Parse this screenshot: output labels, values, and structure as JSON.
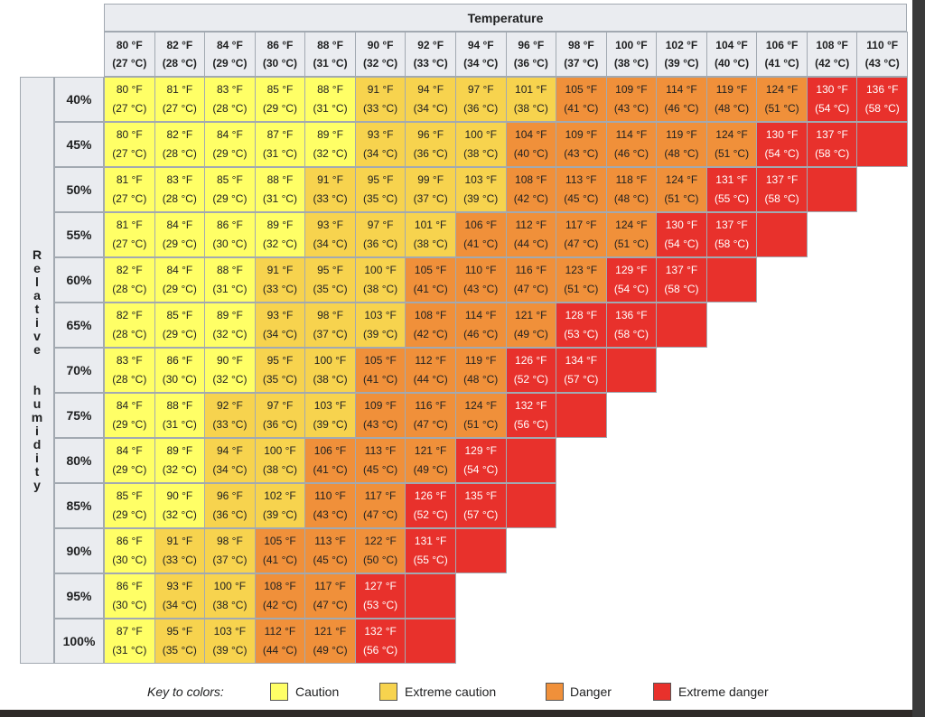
{
  "chart_data": {
    "type": "heatmap",
    "title": "Temperature",
    "xlabel": "Temperature",
    "ylabel": "Relative humidity",
    "columns": [
      {
        "f": "80 °F",
        "c": "(27 °C)"
      },
      {
        "f": "82 °F",
        "c": "(28 °C)"
      },
      {
        "f": "84 °F",
        "c": "(29 °C)"
      },
      {
        "f": "86 °F",
        "c": "(30 °C)"
      },
      {
        "f": "88 °F",
        "c": "(31 °C)"
      },
      {
        "f": "90 °F",
        "c": "(32 °C)"
      },
      {
        "f": "92 °F",
        "c": "(33 °C)"
      },
      {
        "f": "94 °F",
        "c": "(34 °C)"
      },
      {
        "f": "96 °F",
        "c": "(36 °C)"
      },
      {
        "f": "98 °F",
        "c": "(37 °C)"
      },
      {
        "f": "100 °F",
        "c": "(38 °C)"
      },
      {
        "f": "102 °F",
        "c": "(39 °C)"
      },
      {
        "f": "104 °F",
        "c": "(40 °C)"
      },
      {
        "f": "106 °F",
        "c": "(41 °C)"
      },
      {
        "f": "108 °F",
        "c": "(42 °C)"
      },
      {
        "f": "110 °F",
        "c": "(43 °C)"
      }
    ],
    "rows": [
      {
        "rh": "40%",
        "f": [
          80,
          81,
          83,
          85,
          88,
          91,
          94,
          97,
          101,
          105,
          109,
          114,
          119,
          124,
          130,
          136
        ],
        "c": [
          27,
          27,
          28,
          29,
          31,
          33,
          34,
          36,
          38,
          41,
          43,
          46,
          48,
          51,
          54,
          58
        ],
        "blank": 0
      },
      {
        "rh": "45%",
        "f": [
          80,
          82,
          84,
          87,
          89,
          93,
          96,
          100,
          104,
          109,
          114,
          119,
          124,
          130,
          137
        ],
        "c": [
          27,
          28,
          29,
          31,
          32,
          34,
          36,
          38,
          40,
          43,
          46,
          48,
          51,
          54,
          58
        ],
        "blank": 1
      },
      {
        "rh": "50%",
        "f": [
          81,
          83,
          85,
          88,
          91,
          95,
          99,
          103,
          108,
          113,
          118,
          124,
          131,
          137
        ],
        "c": [
          27,
          28,
          29,
          31,
          33,
          35,
          37,
          39,
          42,
          45,
          48,
          51,
          55,
          58
        ],
        "blank": 1
      },
      {
        "rh": "55%",
        "f": [
          81,
          84,
          86,
          89,
          93,
          97,
          101,
          106,
          112,
          117,
          124,
          130,
          137
        ],
        "c": [
          27,
          29,
          30,
          32,
          34,
          36,
          38,
          41,
          44,
          47,
          51,
          54,
          58
        ],
        "blank": 1
      },
      {
        "rh": "60%",
        "f": [
          82,
          84,
          88,
          91,
          95,
          100,
          105,
          110,
          116,
          123,
          129,
          137
        ],
        "c": [
          28,
          29,
          31,
          33,
          35,
          38,
          41,
          43,
          47,
          51,
          54,
          58
        ],
        "blank": 1
      },
      {
        "rh": "65%",
        "f": [
          82,
          85,
          89,
          93,
          98,
          103,
          108,
          114,
          121,
          128,
          136
        ],
        "c": [
          28,
          29,
          32,
          34,
          37,
          39,
          42,
          46,
          49,
          53,
          58
        ],
        "blank": 1
      },
      {
        "rh": "70%",
        "f": [
          83,
          86,
          90,
          95,
          100,
          105,
          112,
          119,
          126,
          134
        ],
        "c": [
          28,
          30,
          32,
          35,
          38,
          41,
          44,
          48,
          52,
          57
        ],
        "blank": 1
      },
      {
        "rh": "75%",
        "f": [
          84,
          88,
          92,
          97,
          103,
          109,
          116,
          124,
          132
        ],
        "c": [
          29,
          31,
          33,
          36,
          39,
          43,
          47,
          51,
          56
        ],
        "blank": 1
      },
      {
        "rh": "80%",
        "f": [
          84,
          89,
          94,
          100,
          106,
          113,
          121,
          129
        ],
        "c": [
          29,
          32,
          34,
          38,
          41,
          45,
          49,
          54
        ],
        "blank": 1
      },
      {
        "rh": "85%",
        "f": [
          85,
          90,
          96,
          102,
          110,
          117,
          126,
          135
        ],
        "c": [
          29,
          32,
          36,
          39,
          43,
          47,
          52,
          57
        ],
        "blank": 1
      },
      {
        "rh": "90%",
        "f": [
          86,
          91,
          98,
          105,
          113,
          122,
          131
        ],
        "c": [
          30,
          33,
          37,
          41,
          45,
          50,
          55
        ],
        "blank": 1
      },
      {
        "rh": "95%",
        "f": [
          86,
          93,
          100,
          108,
          117,
          127
        ],
        "c": [
          30,
          34,
          38,
          42,
          47,
          53
        ],
        "blank": 1
      },
      {
        "rh": "100%",
        "f": [
          87,
          95,
          103,
          112,
          121,
          132
        ],
        "c": [
          31,
          35,
          39,
          44,
          49,
          56
        ],
        "blank": 1
      }
    ],
    "categories_thresholds_f": {
      "caution": [
        80,
        90
      ],
      "extreme_caution": [
        91,
        103
      ],
      "danger": [
        104,
        124
      ],
      "extreme_danger": [
        125,
        999
      ]
    },
    "legend": [
      {
        "key": "caution",
        "label": "Caution",
        "color": "#ffff66"
      },
      {
        "key": "extreme-caution",
        "label": "Extreme caution",
        "color": "#f7d34e"
      },
      {
        "key": "danger",
        "label": "Danger",
        "color": "#f0903a"
      },
      {
        "key": "extreme-danger",
        "label": "Extreme danger",
        "color": "#e8312c"
      }
    ],
    "legend_title": "Key to colors:",
    "legend_placement": "bottom"
  },
  "header": {
    "title": "Temperature"
  },
  "side": {
    "label": "Relative humidity"
  }
}
